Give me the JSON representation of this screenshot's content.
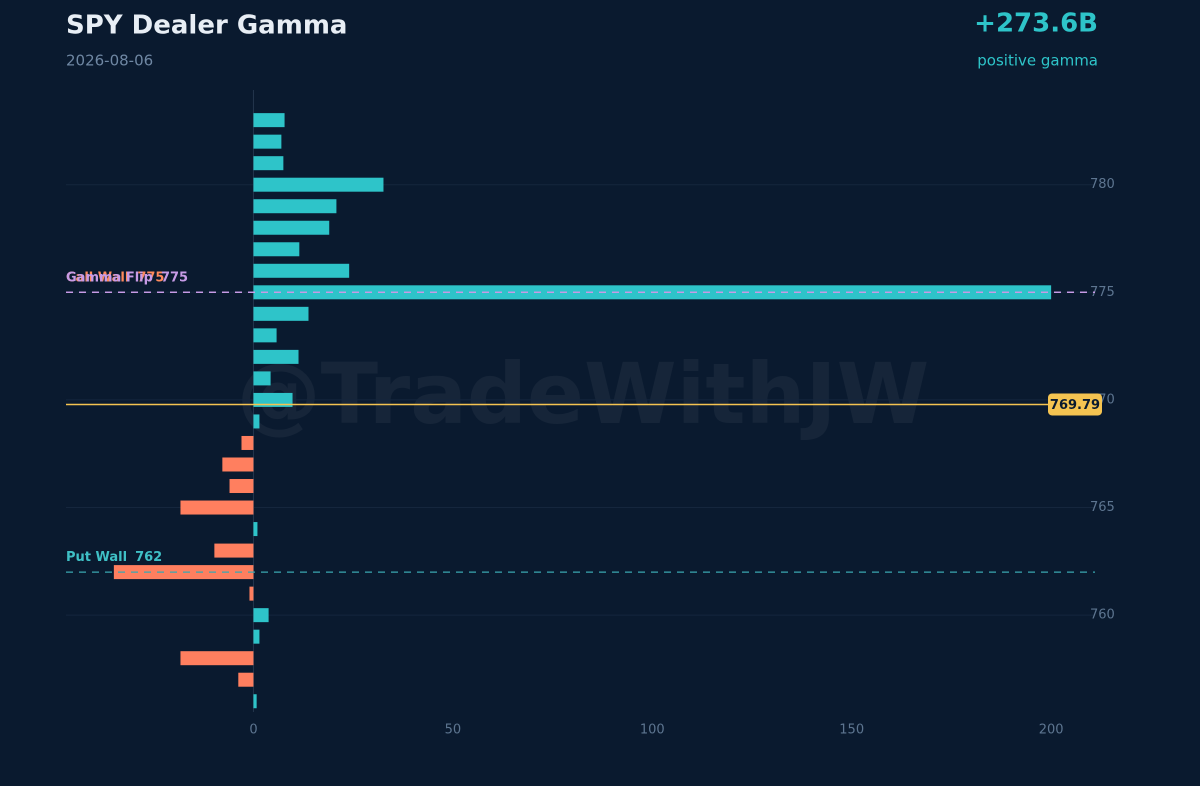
{
  "chart_data": {
    "type": "bar",
    "orientation": "horizontal",
    "title": "SPY Dealer Gamma",
    "subtitle": "2026-08-06",
    "net_gamma": "+273.6B",
    "net_gamma_note": "positive gamma",
    "watermark": "@TradeWithJW",
    "y": [
      783,
      782,
      781,
      780,
      779,
      778,
      777,
      776,
      775,
      774,
      773,
      772,
      771,
      770,
      769,
      768,
      767,
      766,
      765,
      764,
      763,
      762,
      761,
      760,
      759,
      758,
      757,
      756
    ],
    "values": [
      7.8,
      7,
      7.5,
      32.6,
      20.8,
      19,
      11.5,
      24,
      200,
      13.8,
      5.8,
      11.3,
      4.3,
      9.8,
      1.5,
      -3,
      -7.8,
      -6,
      -18.3,
      1,
      -9.8,
      -35,
      -1,
      3.8,
      1.5,
      -18.3,
      -3.8,
      0.8
    ],
    "colors": {
      "positive": "#2ec4c9",
      "negative": "#ff7f5f"
    },
    "xlim": [
      -47,
      211
    ],
    "xticks": [
      0,
      50,
      100,
      150,
      200
    ],
    "ylim": [
      755.5,
      784.4
    ],
    "yticks": [
      760,
      765,
      770,
      775,
      780
    ],
    "grid": true,
    "levels": [
      {
        "label": "Call Wall",
        "value": 775,
        "color": "#ff8a5c",
        "line_color": "#c79be6",
        "dashed": true
      },
      {
        "label": "Gamma Flip",
        "value": 775,
        "color": "#c79be6",
        "line_color": "#c79be6",
        "dashed": true
      },
      {
        "label": "Put Wall",
        "value": 762,
        "color": "#3fc0c6",
        "line_color": "#3aa7b0",
        "dashed": true
      }
    ],
    "spot": {
      "value": 769.79,
      "color": "#f5c451"
    }
  }
}
